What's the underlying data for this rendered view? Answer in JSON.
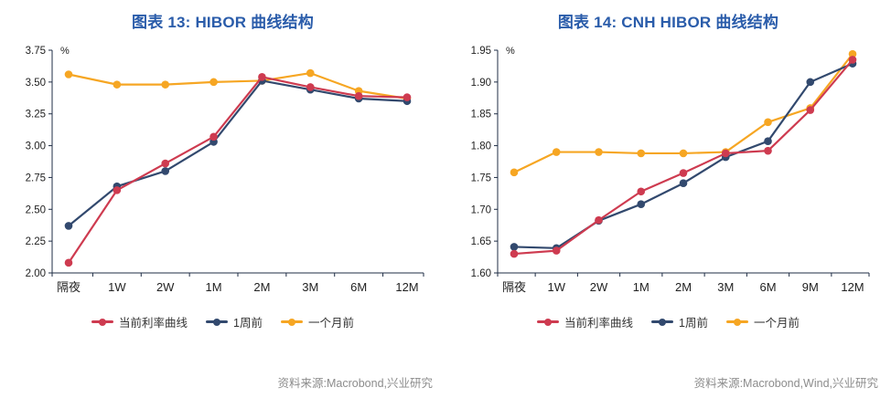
{
  "theme": {
    "title_color": "#2a5caa",
    "axis_color": "#1f2d45",
    "source_color": "#8c8c8c"
  },
  "chart_data": [
    {
      "type": "line",
      "title": "图表 13: HIBOR 曲线结构",
      "unit": "%",
      "categories": [
        "隔夜",
        "1W",
        "2W",
        "1M",
        "2M",
        "3M",
        "6M",
        "12M"
      ],
      "series": [
        {
          "name": "当前利率曲线",
          "color": "#ce3b50",
          "values": [
            2.08,
            2.65,
            2.86,
            3.07,
            3.54,
            3.46,
            3.39,
            3.38
          ]
        },
        {
          "name": "1周前",
          "color": "#32496e",
          "values": [
            2.37,
            2.68,
            2.8,
            3.03,
            3.51,
            3.44,
            3.37,
            3.35
          ]
        },
        {
          "name": "一个月前",
          "color": "#f6a623",
          "values": [
            3.56,
            3.48,
            3.48,
            3.5,
            3.51,
            3.57,
            3.43,
            3.37
          ]
        }
      ],
      "ylim": [
        2.0,
        3.75
      ],
      "ytick_step": 0.25,
      "grid": false,
      "legend_position": "bottom",
      "source": "资料来源:Macrobond,兴业研究"
    },
    {
      "type": "line",
      "title": "图表 14: CNH HIBOR 曲线结构",
      "unit": "%",
      "categories": [
        "隔夜",
        "1W",
        "2W",
        "1M",
        "2M",
        "3M",
        "6M",
        "9M",
        "12M"
      ],
      "series": [
        {
          "name": "当前利率曲线",
          "color": "#ce3b50",
          "values": [
            1.63,
            1.635,
            1.683,
            1.728,
            1.757,
            1.788,
            1.792,
            1.856,
            1.935
          ]
        },
        {
          "name": "1周前",
          "color": "#32496e",
          "values": [
            1.641,
            1.639,
            1.682,
            1.708,
            1.741,
            1.782,
            1.807,
            1.9,
            1.929
          ]
        },
        {
          "name": "一个月前",
          "color": "#f6a623",
          "values": [
            1.758,
            1.79,
            1.79,
            1.788,
            1.788,
            1.79,
            1.837,
            1.859,
            1.944
          ]
        }
      ],
      "ylim": [
        1.6,
        1.95
      ],
      "ytick_step": 0.05,
      "grid": false,
      "legend_position": "bottom",
      "source": "资料来源:Macrobond,Wind,兴业研究"
    }
  ]
}
